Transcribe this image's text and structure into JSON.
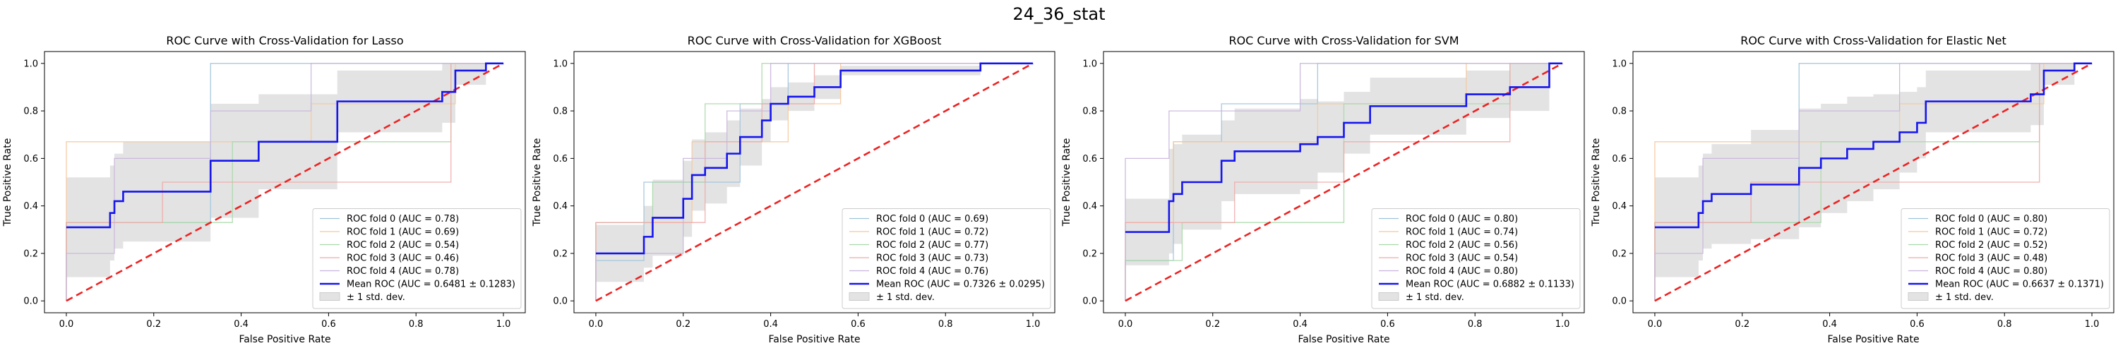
{
  "suptitle": "24_36_stat",
  "chart_data": [
    {
      "type": "line",
      "title": "ROC Curve with Cross-Validation for Lasso",
      "xlabel": "False Positive Rate",
      "ylabel": "True Positive Rate",
      "xlim": [
        -0.05,
        1.05
      ],
      "ylim": [
        -0.05,
        1.05
      ],
      "xticks": [
        0.0,
        0.2,
        0.4,
        0.6,
        0.8,
        1.0
      ],
      "yticks": [
        0.0,
        0.2,
        0.4,
        0.6,
        0.8,
        1.0
      ],
      "legend_position": "lower right",
      "folds": [
        {
          "name": "ROC fold 0 (AUC = 0.78)",
          "color": "#9ec3dc",
          "x": [
            0,
            0,
            0.33,
            0.33,
            1.0
          ],
          "y": [
            0,
            0.33,
            0.33,
            1.0,
            1.0
          ]
        },
        {
          "name": "ROC fold 1 (AUC = 0.69)",
          "color": "#f6c89b",
          "x": [
            0,
            0,
            0.56,
            0.56,
            0.89,
            0.89,
            1.0
          ],
          "y": [
            0,
            0.67,
            0.67,
            0.83,
            0.83,
            1.0,
            1.0
          ]
        },
        {
          "name": "ROC fold 2 (AUC = 0.54)",
          "color": "#a8d8a8",
          "x": [
            0,
            0,
            0.38,
            0.38,
            0.88,
            0.88,
            1.0
          ],
          "y": [
            0,
            0.33,
            0.33,
            0.67,
            0.67,
            1.0,
            1.0
          ]
        },
        {
          "name": "ROC fold 3 (AUC = 0.46)",
          "color": "#f0a8a8",
          "x": [
            0,
            0,
            0.22,
            0.22,
            0.88,
            0.88,
            1.0
          ],
          "y": [
            0,
            0.33,
            0.33,
            0.5,
            0.5,
            1.0,
            1.0
          ]
        },
        {
          "name": "ROC fold 4 (AUC = 0.78)",
          "color": "#c8b5dc",
          "x": [
            0,
            0,
            0.11,
            0.11,
            0.33,
            0.33,
            0.56,
            0.56,
            1.0
          ],
          "y": [
            0,
            0.2,
            0.2,
            0.6,
            0.6,
            0.8,
            0.8,
            1.0,
            1.0
          ]
        }
      ],
      "mean": {
        "name": "Mean ROC (AUC = 0.6481 ± 0.1283)",
        "x": [
          0,
          0,
          0.1,
          0.1,
          0.11,
          0.11,
          0.13,
          0.13,
          0.33,
          0.33,
          0.44,
          0.44,
          0.62,
          0.62,
          0.86,
          0.86,
          0.89,
          0.89,
          0.96,
          0.96,
          1.0
        ],
        "y": [
          0.31,
          0.31,
          0.31,
          0.37,
          0.37,
          0.42,
          0.42,
          0.46,
          0.46,
          0.59,
          0.59,
          0.67,
          0.67,
          0.84,
          0.84,
          0.88,
          0.88,
          0.97,
          0.97,
          1.0,
          1.0
        ],
        "std": [
          0.21,
          0.21,
          0.21,
          0.2,
          0.2,
          0.2,
          0.2,
          0.21,
          0.21,
          0.24,
          0.24,
          0.2,
          0.2,
          0.13,
          0.13,
          0.13,
          0.13,
          0.06,
          0.06,
          0.0,
          0.0
        ]
      },
      "std_label": "± 1 std. dev."
    },
    {
      "type": "line",
      "title": "ROC Curve with Cross-Validation for XGBoost",
      "xlabel": "False Positive Rate",
      "ylabel": "True Positive Rate",
      "xlim": [
        -0.05,
        1.05
      ],
      "ylim": [
        -0.05,
        1.05
      ],
      "xticks": [
        0.0,
        0.2,
        0.4,
        0.6,
        0.8,
        1.0
      ],
      "yticks": [
        0.0,
        0.2,
        0.4,
        0.6,
        0.8,
        1.0
      ],
      "legend_position": "lower right",
      "folds": [
        {
          "name": "ROC fold 0 (AUC = 0.69)",
          "color": "#9ec3dc",
          "x": [
            0,
            0,
            0.11,
            0.11,
            0.33,
            0.33,
            0.44,
            0.44,
            1.0
          ],
          "y": [
            0,
            0.17,
            0.17,
            0.5,
            0.5,
            0.83,
            0.83,
            1.0,
            1.0
          ]
        },
        {
          "name": "ROC fold 1 (AUC = 0.72)",
          "color": "#f6c89b",
          "x": [
            0,
            0,
            0.22,
            0.22,
            0.44,
            0.44,
            0.56,
            0.56,
            1.0
          ],
          "y": [
            0,
            0.33,
            0.33,
            0.67,
            0.67,
            0.83,
            0.83,
            1.0,
            1.0
          ]
        },
        {
          "name": "ROC fold 2 (AUC = 0.77)",
          "color": "#a8d8a8",
          "x": [
            0,
            0,
            0.13,
            0.13,
            0.25,
            0.25,
            0.38,
            0.38,
            1.0
          ],
          "y": [
            0,
            0.33,
            0.33,
            0.5,
            0.5,
            0.83,
            0.83,
            1.0,
            1.0
          ]
        },
        {
          "name": "ROC fold 3 (AUC = 0.73)",
          "color": "#f0a8a8",
          "x": [
            0,
            0,
            0.25,
            0.25,
            0.38,
            0.38,
            0.5,
            0.5,
            1.0
          ],
          "y": [
            0,
            0.33,
            0.33,
            0.67,
            0.67,
            0.83,
            0.83,
            1.0,
            1.0
          ]
        },
        {
          "name": "ROC fold 4 (AUC = 0.76)",
          "color": "#c8b5dc",
          "x": [
            0,
            0,
            0.2,
            0.2,
            0.3,
            0.3,
            0.4,
            0.4,
            1.0
          ],
          "y": [
            0,
            0.2,
            0.2,
            0.6,
            0.6,
            0.8,
            0.8,
            1.0,
            1.0
          ]
        }
      ],
      "mean": {
        "name": "Mean ROC (AUC = 0.7326 ± 0.0295)",
        "x": [
          0,
          0,
          0.11,
          0.11,
          0.13,
          0.13,
          0.2,
          0.2,
          0.22,
          0.22,
          0.25,
          0.25,
          0.3,
          0.3,
          0.33,
          0.33,
          0.38,
          0.38,
          0.4,
          0.4,
          0.44,
          0.44,
          0.5,
          0.5,
          0.56,
          0.56,
          0.88,
          0.88,
          1.0
        ],
        "y": [
          0.2,
          0.2,
          0.2,
          0.27,
          0.27,
          0.35,
          0.35,
          0.43,
          0.43,
          0.53,
          0.53,
          0.56,
          0.56,
          0.62,
          0.62,
          0.69,
          0.69,
          0.76,
          0.76,
          0.83,
          0.83,
          0.86,
          0.86,
          0.9,
          0.9,
          0.97,
          0.97,
          1.0,
          1.0
        ],
        "std": [
          0.12,
          0.12,
          0.12,
          0.13,
          0.13,
          0.16,
          0.16,
          0.16,
          0.16,
          0.15,
          0.15,
          0.15,
          0.15,
          0.14,
          0.14,
          0.12,
          0.12,
          0.09,
          0.09,
          0.07,
          0.07,
          0.06,
          0.06,
          0.05,
          0.05,
          0.02,
          0.02,
          0.0,
          0.0
        ]
      },
      "std_label": "± 1 std. dev."
    },
    {
      "type": "line",
      "title": "ROC Curve with Cross-Validation for SVM",
      "xlabel": "False Positive Rate",
      "ylabel": "True Positive Rate",
      "xlim": [
        -0.05,
        1.05
      ],
      "ylim": [
        -0.05,
        1.05
      ],
      "xticks": [
        0.0,
        0.2,
        0.4,
        0.6,
        0.8,
        1.0
      ],
      "yticks": [
        0.0,
        0.2,
        0.4,
        0.6,
        0.8,
        1.0
      ],
      "legend_position": "lower right",
      "folds": [
        {
          "name": "ROC fold 0 (AUC = 0.80)",
          "color": "#9ec3dc",
          "x": [
            0,
            0,
            0.11,
            0.11,
            0.22,
            0.22,
            0.44,
            0.44,
            1.0
          ],
          "y": [
            0,
            0.17,
            0.17,
            0.67,
            0.67,
            0.83,
            0.83,
            1.0,
            1.0
          ]
        },
        {
          "name": "ROC fold 1 (AUC = 0.74)",
          "color": "#f6c89b",
          "x": [
            0,
            0,
            0.11,
            0.11,
            0.44,
            0.44,
            0.78,
            0.78,
            1.0
          ],
          "y": [
            0,
            0.33,
            0.33,
            0.67,
            0.67,
            0.83,
            0.83,
            1.0,
            1.0
          ]
        },
        {
          "name": "ROC fold 2 (AUC = 0.56)",
          "color": "#a8d8a8",
          "x": [
            0,
            0,
            0.13,
            0.13,
            0.5,
            0.5,
            0.88,
            0.88,
            1.0
          ],
          "y": [
            0,
            0.17,
            0.17,
            0.33,
            0.33,
            0.83,
            0.83,
            1.0,
            1.0
          ]
        },
        {
          "name": "ROC fold 3 (AUC = 0.54)",
          "color": "#f0a8a8",
          "x": [
            0,
            0,
            0.25,
            0.25,
            0.5,
            0.5,
            0.88,
            0.88,
            1.0
          ],
          "y": [
            0,
            0.33,
            0.33,
            0.5,
            0.5,
            0.67,
            0.67,
            1.0,
            1.0
          ]
        },
        {
          "name": "ROC fold 4 (AUC = 0.80)",
          "color": "#c8b5dc",
          "x": [
            0,
            0,
            0.1,
            0.1,
            0.2,
            0.2,
            0.4,
            0.4,
            1.0
          ],
          "y": [
            0,
            0.6,
            0.6,
            0.8,
            0.8,
            0.8,
            0.8,
            1.0,
            1.0
          ]
        }
      ],
      "mean": {
        "name": "Mean ROC (AUC = 0.6882 ± 0.1133)",
        "x": [
          0,
          0,
          0.1,
          0.1,
          0.11,
          0.11,
          0.13,
          0.13,
          0.22,
          0.22,
          0.25,
          0.25,
          0.4,
          0.4,
          0.44,
          0.44,
          0.5,
          0.5,
          0.56,
          0.56,
          0.78,
          0.78,
          0.88,
          0.88,
          0.97,
          0.97,
          1.0
        ],
        "y": [
          0.29,
          0.29,
          0.29,
          0.42,
          0.42,
          0.45,
          0.45,
          0.5,
          0.5,
          0.59,
          0.59,
          0.63,
          0.63,
          0.66,
          0.66,
          0.69,
          0.69,
          0.75,
          0.75,
          0.82,
          0.82,
          0.87,
          0.87,
          0.9,
          0.9,
          1.0,
          1.0
        ],
        "std": [
          0.14,
          0.14,
          0.14,
          0.22,
          0.22,
          0.21,
          0.21,
          0.2,
          0.2,
          0.17,
          0.17,
          0.18,
          0.18,
          0.19,
          0.19,
          0.15,
          0.15,
          0.13,
          0.13,
          0.12,
          0.12,
          0.1,
          0.1,
          0.1,
          0.1,
          0.0,
          0.0
        ]
      },
      "std_label": "± 1 std. dev."
    },
    {
      "type": "line",
      "title": "ROC Curve with Cross-Validation for Elastic Net",
      "xlabel": "False Positive Rate",
      "ylabel": "True Positive Rate",
      "xlim": [
        -0.05,
        1.05
      ],
      "ylim": [
        -0.05,
        1.05
      ],
      "xticks": [
        0.0,
        0.2,
        0.4,
        0.6,
        0.8,
        1.0
      ],
      "yticks": [
        0.0,
        0.2,
        0.4,
        0.6,
        0.8,
        1.0
      ],
      "legend_position": "lower right",
      "folds": [
        {
          "name": "ROC fold 0 (AUC = 0.80)",
          "color": "#9ec3dc",
          "x": [
            0,
            0,
            0.33,
            0.33,
            1.0
          ],
          "y": [
            0,
            0.33,
            0.33,
            1.0,
            1.0
          ]
        },
        {
          "name": "ROC fold 1 (AUC = 0.72)",
          "color": "#f6c89b",
          "x": [
            0,
            0,
            0.56,
            0.56,
            0.89,
            0.89,
            1.0
          ],
          "y": [
            0,
            0.67,
            0.67,
            0.83,
            0.83,
            1.0,
            1.0
          ]
        },
        {
          "name": "ROC fold 2 (AUC = 0.52)",
          "color": "#a8d8a8",
          "x": [
            0,
            0,
            0.38,
            0.38,
            0.88,
            0.88,
            1.0
          ],
          "y": [
            0,
            0.33,
            0.33,
            0.67,
            0.67,
            1.0,
            1.0
          ]
        },
        {
          "name": "ROC fold 3 (AUC = 0.48)",
          "color": "#f0a8a8",
          "x": [
            0,
            0,
            0.22,
            0.22,
            0.88,
            0.88,
            1.0
          ],
          "y": [
            0,
            0.33,
            0.33,
            0.5,
            0.5,
            1.0,
            1.0
          ]
        },
        {
          "name": "ROC fold 4 (AUC = 0.80)",
          "color": "#c8b5dc",
          "x": [
            0,
            0,
            0.11,
            0.11,
            0.33,
            0.33,
            0.56,
            0.56,
            1.0
          ],
          "y": [
            0,
            0.2,
            0.2,
            0.6,
            0.6,
            0.8,
            0.8,
            1.0,
            1.0
          ]
        }
      ],
      "mean": {
        "name": "Mean ROC (AUC = 0.6637 ± 0.1371)",
        "x": [
          0,
          0,
          0.1,
          0.1,
          0.11,
          0.11,
          0.13,
          0.13,
          0.22,
          0.22,
          0.33,
          0.33,
          0.38,
          0.38,
          0.44,
          0.44,
          0.5,
          0.5,
          0.56,
          0.56,
          0.6,
          0.6,
          0.62,
          0.62,
          0.86,
          0.86,
          0.89,
          0.89,
          0.96,
          0.96,
          1.0
        ],
        "y": [
          0.31,
          0.31,
          0.31,
          0.37,
          0.37,
          0.42,
          0.42,
          0.45,
          0.45,
          0.49,
          0.49,
          0.56,
          0.56,
          0.6,
          0.6,
          0.64,
          0.64,
          0.67,
          0.67,
          0.71,
          0.71,
          0.75,
          0.75,
          0.84,
          0.84,
          0.87,
          0.87,
          0.97,
          0.97,
          1.0,
          1.0
        ],
        "std": [
          0.21,
          0.21,
          0.21,
          0.2,
          0.2,
          0.2,
          0.2,
          0.21,
          0.21,
          0.23,
          0.23,
          0.25,
          0.25,
          0.23,
          0.23,
          0.22,
          0.22,
          0.2,
          0.2,
          0.17,
          0.17,
          0.15,
          0.15,
          0.13,
          0.13,
          0.13,
          0.13,
          0.06,
          0.06,
          0.0,
          0.0
        ]
      },
      "std_label": "± 1 std. dev."
    }
  ]
}
